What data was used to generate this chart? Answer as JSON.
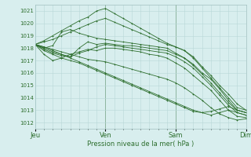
{
  "xlabel": "Pression niveau de la mer( hPa )",
  "bg_color": "#d8eeee",
  "grid_color": "#b8d8d8",
  "line_color": "#2d6e2d",
  "ylim": [
    1011.5,
    1021.5
  ],
  "yticks": [
    1012,
    1013,
    1014,
    1015,
    1016,
    1017,
    1018,
    1019,
    1020,
    1021
  ],
  "day_labels": [
    "Jeu",
    "Ven",
    "Sam",
    "Dim"
  ],
  "day_positions": [
    0,
    96,
    192,
    288
  ],
  "total_hours": 288,
  "ensemble_lines": [
    [
      1018.3,
      1017.8,
      1017.5,
      1017.2,
      1017.0,
      1016.8,
      1016.5,
      1016.2,
      1015.9,
      1015.6,
      1015.3,
      1015.0,
      1014.7,
      1014.4,
      1014.1,
      1013.8,
      1013.5,
      1013.2,
      1012.9,
      1012.8,
      1012.9,
      1013.1,
      1013.3,
      1013.0,
      1012.8
    ],
    [
      1018.3,
      1018.1,
      1017.8,
      1017.5,
      1017.2,
      1016.9,
      1016.6,
      1016.3,
      1016.0,
      1015.7,
      1015.4,
      1015.1,
      1014.8,
      1014.5,
      1014.2,
      1013.9,
      1013.6,
      1013.3,
      1013.0,
      1012.8,
      1012.6,
      1012.8,
      1013.0,
      1012.8,
      1012.6
    ],
    [
      1018.3,
      1018.5,
      1018.7,
      1019.0,
      1019.3,
      1019.6,
      1019.9,
      1020.2,
      1020.4,
      1020.1,
      1019.8,
      1019.5,
      1019.2,
      1018.9,
      1018.6,
      1018.3,
      1018.1,
      1017.8,
      1017.3,
      1016.5,
      1015.8,
      1015.0,
      1014.3,
      1013.5,
      1013.0
    ],
    [
      1018.3,
      1018.6,
      1019.0,
      1019.4,
      1019.8,
      1020.2,
      1020.5,
      1021.0,
      1021.2,
      1020.8,
      1020.4,
      1020.0,
      1019.6,
      1019.2,
      1018.8,
      1018.4,
      1018.1,
      1017.8,
      1017.2,
      1016.4,
      1015.6,
      1014.8,
      1014.0,
      1013.2,
      1013.0
    ],
    [
      1018.3,
      1018.0,
      1017.7,
      1017.5,
      1017.3,
      1018.0,
      1018.5,
      1018.3,
      1018.4,
      1018.3,
      1018.2,
      1018.2,
      1018.1,
      1018.0,
      1017.9,
      1017.8,
      1017.5,
      1017.2,
      1016.7,
      1016.0,
      1015.5,
      1014.7,
      1013.8,
      1013.0,
      1012.8
    ],
    [
      1018.3,
      1018.1,
      1017.9,
      1017.7,
      1017.5,
      1017.7,
      1017.9,
      1017.8,
      1018.0,
      1018.0,
      1017.9,
      1017.8,
      1017.7,
      1017.5,
      1017.4,
      1017.2,
      1016.8,
      1016.4,
      1015.8,
      1015.2,
      1014.6,
      1013.8,
      1013.0,
      1012.5,
      1012.4
    ],
    [
      1018.3,
      1017.5,
      1017.0,
      1017.2,
      1017.5,
      1017.3,
      1017.1,
      1017.0,
      1016.9,
      1016.7,
      1016.5,
      1016.3,
      1016.1,
      1015.9,
      1015.7,
      1015.5,
      1015.2,
      1014.8,
      1014.3,
      1013.8,
      1013.2,
      1012.7,
      1012.4,
      1012.2,
      1012.3
    ],
    [
      1018.3,
      1018.0,
      1018.2,
      1019.3,
      1019.5,
      1019.2,
      1019.0,
      1018.8,
      1018.7,
      1018.6,
      1018.5,
      1018.4,
      1018.3,
      1018.2,
      1018.1,
      1018.0,
      1017.6,
      1017.2,
      1016.6,
      1015.9,
      1015.2,
      1014.4,
      1013.6,
      1013.0,
      1012.8
    ],
    [
      1018.3,
      1017.9,
      1017.6,
      1017.4,
      1017.3,
      1017.6,
      1017.8,
      1018.1,
      1018.3,
      1018.2,
      1018.1,
      1018.0,
      1017.9,
      1017.8,
      1017.7,
      1017.6,
      1017.3,
      1016.9,
      1016.4,
      1015.7,
      1015.0,
      1014.2,
      1013.4,
      1012.8,
      1012.6
    ]
  ]
}
